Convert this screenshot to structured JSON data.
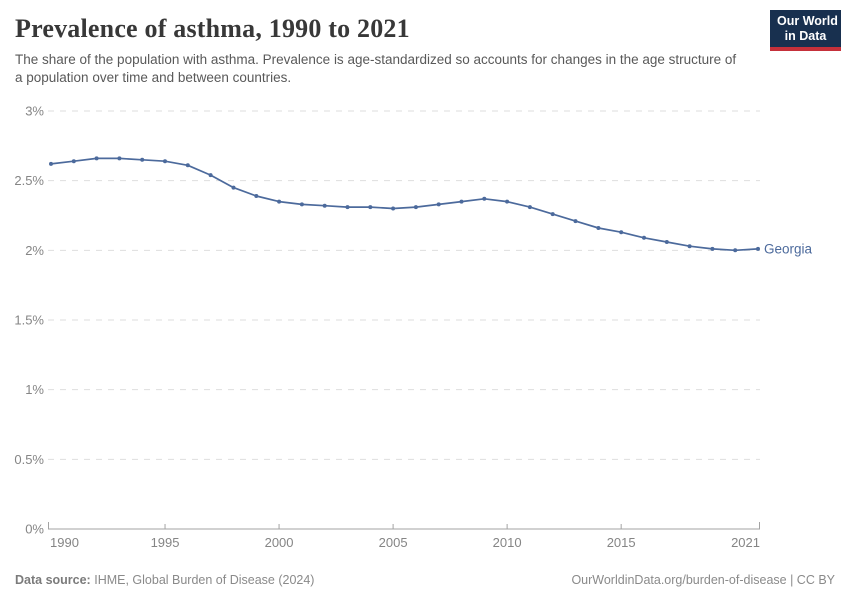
{
  "header": {
    "title": "Prevalence of asthma, 1990 to 2021",
    "subtitle": "The share of the population with asthma. Prevalence is age-standardized so accounts for changes in the age structure of a population over time and between countries.",
    "logo": {
      "line1": "Our World",
      "line2": "in Data"
    }
  },
  "chart_data": {
    "type": "line",
    "title": "Prevalence of asthma, 1990 to 2021",
    "x": [
      1990,
      1991,
      1992,
      1993,
      1994,
      1995,
      1996,
      1997,
      1998,
      1999,
      2000,
      2001,
      2002,
      2003,
      2004,
      2005,
      2006,
      2007,
      2008,
      2009,
      2010,
      2011,
      2012,
      2013,
      2014,
      2015,
      2016,
      2017,
      2018,
      2019,
      2020,
      2021
    ],
    "series": [
      {
        "name": "Georgia",
        "color": "#4c6a9c",
        "values": [
          2.62,
          2.64,
          2.66,
          2.66,
          2.65,
          2.64,
          2.61,
          2.54,
          2.45,
          2.39,
          2.35,
          2.33,
          2.32,
          2.31,
          2.31,
          2.3,
          2.31,
          2.33,
          2.35,
          2.37,
          2.35,
          2.31,
          2.26,
          2.21,
          2.16,
          2.13,
          2.09,
          2.06,
          2.03,
          2.01,
          2.0,
          2.01
        ]
      }
    ],
    "xlabel": "",
    "ylabel": "",
    "xlim": [
      1990,
      2021
    ],
    "ylim": [
      0,
      3
    ],
    "x_tick_labels": [
      "1990",
      "1995",
      "2000",
      "2005",
      "2010",
      "2015",
      "2021"
    ],
    "x_tick_values": [
      1990,
      1995,
      2000,
      2005,
      2010,
      2015,
      2021
    ],
    "y_tick_labels": [
      "0%",
      "0.5%",
      "1%",
      "1.5%",
      "2%",
      "2.5%",
      "3%"
    ],
    "y_tick_values": [
      0,
      0.5,
      1,
      1.5,
      2,
      2.5,
      3
    ],
    "grid": "horizontal-dashed",
    "legend_position": "end-of-line"
  },
  "footer": {
    "source_label": "Data source:",
    "source_text": "IHME, Global Burden of Disease (2024)",
    "license_text": "OurWorldinData.org/burden-of-disease | CC BY"
  },
  "colors": {
    "series_line": "#4c6a9c",
    "gridline": "#dedede",
    "axis_line": "#a3a3a3",
    "tick_label": "#858585",
    "logo_bg": "#18304f",
    "logo_accent": "#c5303a"
  }
}
